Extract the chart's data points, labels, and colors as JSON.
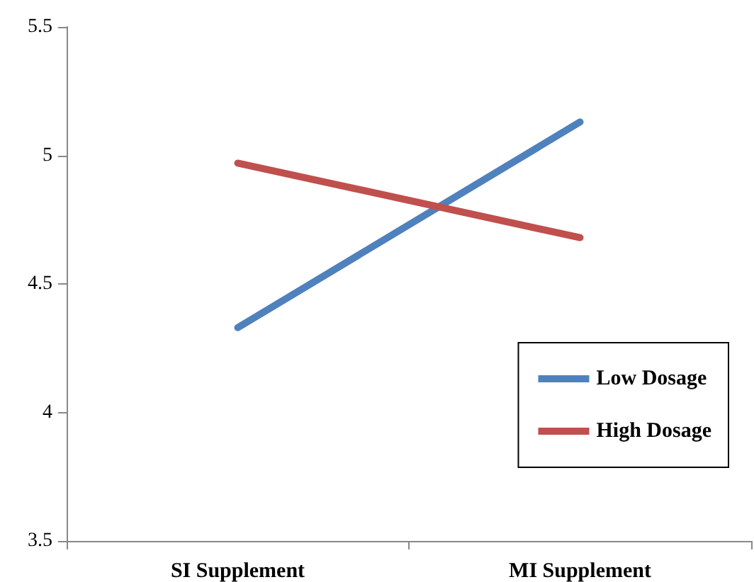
{
  "chart_data": {
    "type": "line",
    "categories": [
      "SI Supplement",
      "MI Supplement"
    ],
    "series": [
      {
        "name": "Low Dosage",
        "color": "#4f81bd",
        "values": [
          4.33,
          5.13
        ]
      },
      {
        "name": "High Dosage",
        "color": "#c0504d",
        "values": [
          4.97,
          4.68
        ]
      }
    ],
    "ylim": [
      3.5,
      5.5
    ],
    "yticks": [
      3.5,
      4,
      4.5,
      5,
      5.5
    ],
    "grid": false,
    "legend": "bottom right",
    "marker": "none",
    "line_style": "solid"
  }
}
